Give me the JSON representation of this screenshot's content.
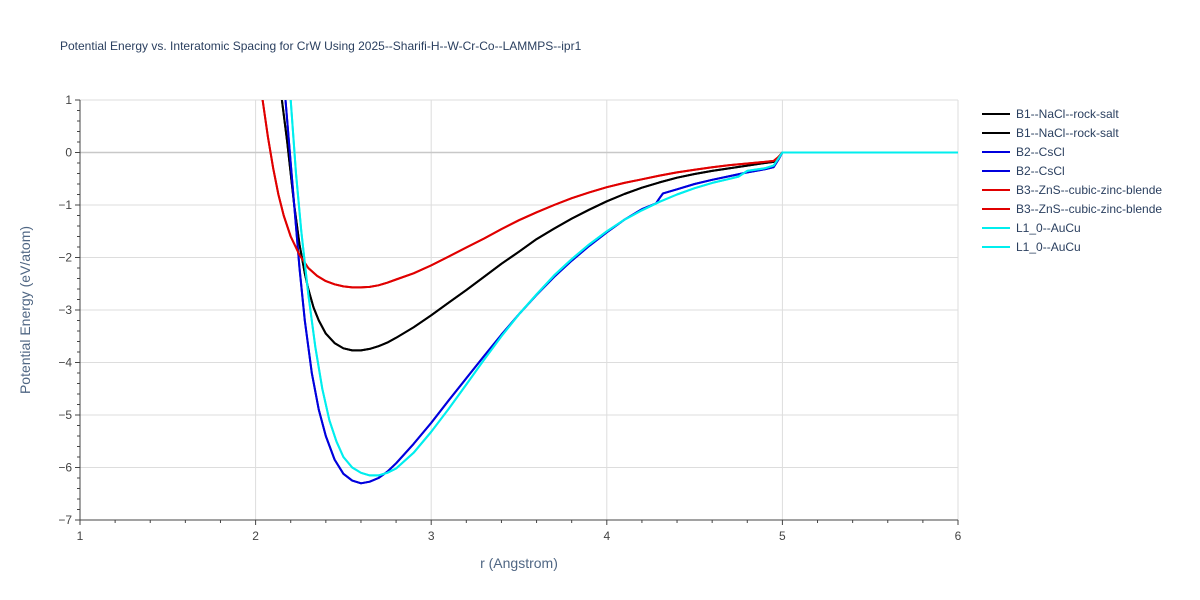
{
  "chart_data": {
    "type": "line",
    "title": "Potential Energy vs. Interatomic Spacing for CrW Using 2025--Sharifi-H--W-Cr-Co--LAMMPS--ipr1",
    "xlabel": "r (Angstrom)",
    "ylabel": "Potential Energy (eV/atom)",
    "xlim": [
      1,
      6
    ],
    "ylim": [
      -7,
      1
    ],
    "xticks": [
      1,
      2,
      3,
      4,
      5,
      6
    ],
    "yticks": [
      1,
      0,
      -1,
      -2,
      -3,
      -4,
      -5,
      -6,
      -7
    ],
    "xtick_labels": [
      "1",
      "2",
      "3",
      "4",
      "5",
      "6"
    ],
    "ytick_labels": [
      "1",
      "0",
      "−1",
      "−2",
      "−3",
      "−4",
      "−5",
      "−6",
      "−7"
    ],
    "grid": true,
    "legend_position": "right",
    "series": [
      {
        "name": "B1--NaCl--rock-salt",
        "color": "#000000",
        "x": [
          2.15,
          2.18,
          2.2,
          2.22,
          2.25,
          2.28,
          2.3,
          2.33,
          2.36,
          2.4,
          2.45,
          2.5,
          2.55,
          2.6,
          2.65,
          2.7,
          2.75,
          2.8,
          2.9,
          3.0,
          3.1,
          3.2,
          3.3,
          3.4,
          3.5,
          3.6,
          3.7,
          3.8,
          3.9,
          4.0,
          4.1,
          4.2,
          4.3,
          4.4,
          4.5,
          4.6,
          4.7,
          4.8,
          4.9,
          4.95,
          4.98,
          5.0,
          5.5,
          6.0
        ],
        "y": [
          1.0,
          0.2,
          -0.4,
          -1.0,
          -1.75,
          -2.3,
          -2.6,
          -2.95,
          -3.2,
          -3.45,
          -3.63,
          -3.73,
          -3.77,
          -3.77,
          -3.74,
          -3.69,
          -3.62,
          -3.53,
          -3.33,
          -3.1,
          -2.86,
          -2.62,
          -2.37,
          -2.12,
          -1.89,
          -1.65,
          -1.45,
          -1.26,
          -1.09,
          -0.93,
          -0.79,
          -0.67,
          -0.57,
          -0.48,
          -0.41,
          -0.35,
          -0.3,
          -0.25,
          -0.2,
          -0.18,
          -0.08,
          0.0,
          0.0,
          0.0
        ]
      },
      {
        "name": "B1--NaCl--rock-salt",
        "color": "#000000",
        "x": [
          2.15,
          2.18,
          2.2,
          2.22,
          2.25,
          2.28,
          2.3,
          2.33,
          2.36,
          2.4,
          2.45,
          2.5,
          2.55,
          2.6,
          2.65,
          2.7,
          2.75,
          2.8,
          2.9,
          3.0,
          3.1,
          3.2,
          3.3,
          3.4,
          3.5,
          3.6,
          3.7,
          3.8,
          3.9,
          4.0,
          4.1,
          4.2,
          4.3,
          4.4,
          4.5,
          4.6,
          4.7,
          4.8,
          4.9,
          4.95,
          4.98,
          5.0,
          5.5,
          6.0
        ],
        "y": [
          1.0,
          0.2,
          -0.4,
          -1.0,
          -1.75,
          -2.3,
          -2.6,
          -2.95,
          -3.2,
          -3.45,
          -3.63,
          -3.73,
          -3.77,
          -3.77,
          -3.74,
          -3.69,
          -3.62,
          -3.53,
          -3.33,
          -3.1,
          -2.86,
          -2.62,
          -2.37,
          -2.12,
          -1.89,
          -1.65,
          -1.45,
          -1.26,
          -1.09,
          -0.93,
          -0.79,
          -0.67,
          -0.57,
          -0.48,
          -0.41,
          -0.35,
          -0.3,
          -0.25,
          -0.2,
          -0.18,
          -0.08,
          0.0,
          0.0,
          0.0
        ]
      },
      {
        "name": "B2--CsCl",
        "color": "#0000dd",
        "x": [
          2.17,
          2.2,
          2.22,
          2.25,
          2.28,
          2.32,
          2.36,
          2.4,
          2.45,
          2.5,
          2.55,
          2.6,
          2.65,
          2.7,
          2.75,
          2.8,
          2.9,
          3.0,
          3.1,
          3.2,
          3.3,
          3.4,
          3.5,
          3.6,
          3.7,
          3.8,
          3.9,
          4.0,
          4.1,
          4.2,
          4.28,
          4.3,
          4.32,
          4.4,
          4.5,
          4.6,
          4.7,
          4.8,
          4.9,
          4.95,
          4.98,
          5.0,
          5.5,
          6.0
        ],
        "y": [
          1.0,
          -0.2,
          -1.0,
          -2.2,
          -3.2,
          -4.2,
          -4.9,
          -5.4,
          -5.85,
          -6.12,
          -6.25,
          -6.3,
          -6.27,
          -6.2,
          -6.08,
          -5.92,
          -5.55,
          -5.15,
          -4.72,
          -4.3,
          -3.88,
          -3.47,
          -3.08,
          -2.71,
          -2.37,
          -2.06,
          -1.78,
          -1.52,
          -1.28,
          -1.08,
          -0.97,
          -0.87,
          -0.78,
          -0.7,
          -0.6,
          -0.52,
          -0.45,
          -0.38,
          -0.32,
          -0.28,
          -0.12,
          0.0,
          0.0,
          0.0
        ]
      },
      {
        "name": "B2--CsCl",
        "color": "#0000dd",
        "x": [
          2.17,
          2.2,
          2.22,
          2.25,
          2.28,
          2.32,
          2.36,
          2.4,
          2.45,
          2.5,
          2.55,
          2.6,
          2.65,
          2.7,
          2.75,
          2.8,
          2.9,
          3.0,
          3.1,
          3.2,
          3.3,
          3.4,
          3.5,
          3.6,
          3.7,
          3.8,
          3.9,
          4.0,
          4.1,
          4.2,
          4.28,
          4.3,
          4.32,
          4.4,
          4.5,
          4.6,
          4.7,
          4.8,
          4.9,
          4.95,
          4.98,
          5.0,
          5.5,
          6.0
        ],
        "y": [
          1.0,
          -0.2,
          -1.0,
          -2.2,
          -3.2,
          -4.2,
          -4.9,
          -5.4,
          -5.85,
          -6.12,
          -6.25,
          -6.3,
          -6.27,
          -6.2,
          -6.08,
          -5.92,
          -5.55,
          -5.15,
          -4.72,
          -4.3,
          -3.88,
          -3.47,
          -3.08,
          -2.71,
          -2.37,
          -2.06,
          -1.78,
          -1.52,
          -1.28,
          -1.08,
          -0.97,
          -0.87,
          -0.78,
          -0.7,
          -0.6,
          -0.52,
          -0.45,
          -0.38,
          -0.32,
          -0.28,
          -0.12,
          0.0,
          0.0,
          0.0
        ]
      },
      {
        "name": "B3--ZnS--cubic-zinc-blende",
        "color": "#e00000",
        "x": [
          2.04,
          2.07,
          2.1,
          2.13,
          2.16,
          2.2,
          2.25,
          2.3,
          2.35,
          2.4,
          2.45,
          2.5,
          2.55,
          2.6,
          2.65,
          2.7,
          2.75,
          2.8,
          2.9,
          3.0,
          3.1,
          3.2,
          3.3,
          3.4,
          3.5,
          3.6,
          3.7,
          3.8,
          3.9,
          4.0,
          4.1,
          4.2,
          4.3,
          4.4,
          4.5,
          4.6,
          4.7,
          4.8,
          4.9,
          4.95,
          4.98,
          5.0,
          5.5,
          6.0
        ],
        "y": [
          1.0,
          0.3,
          -0.3,
          -0.8,
          -1.2,
          -1.6,
          -1.95,
          -2.2,
          -2.35,
          -2.45,
          -2.51,
          -2.55,
          -2.57,
          -2.57,
          -2.56,
          -2.53,
          -2.48,
          -2.42,
          -2.3,
          -2.15,
          -1.98,
          -1.81,
          -1.64,
          -1.46,
          -1.29,
          -1.14,
          -1.0,
          -0.87,
          -0.76,
          -0.66,
          -0.58,
          -0.51,
          -0.44,
          -0.38,
          -0.33,
          -0.28,
          -0.24,
          -0.21,
          -0.18,
          -0.16,
          -0.08,
          0.0,
          0.0,
          0.0
        ]
      },
      {
        "name": "B3--ZnS--cubic-zinc-blende",
        "color": "#e00000",
        "x": [
          2.04,
          2.07,
          2.1,
          2.13,
          2.16,
          2.2,
          2.25,
          2.3,
          2.35,
          2.4,
          2.45,
          2.5,
          2.55,
          2.6,
          2.65,
          2.7,
          2.75,
          2.8,
          2.9,
          3.0,
          3.1,
          3.2,
          3.3,
          3.4,
          3.5,
          3.6,
          3.7,
          3.8,
          3.9,
          4.0,
          4.1,
          4.2,
          4.3,
          4.4,
          4.5,
          4.6,
          4.7,
          4.8,
          4.9,
          4.95,
          4.98,
          5.0,
          5.5,
          6.0
        ],
        "y": [
          1.0,
          0.3,
          -0.3,
          -0.8,
          -1.2,
          -1.6,
          -1.95,
          -2.2,
          -2.35,
          -2.45,
          -2.51,
          -2.55,
          -2.57,
          -2.57,
          -2.56,
          -2.53,
          -2.48,
          -2.42,
          -2.3,
          -2.15,
          -1.98,
          -1.81,
          -1.64,
          -1.46,
          -1.29,
          -1.14,
          -1.0,
          -0.87,
          -0.76,
          -0.66,
          -0.58,
          -0.51,
          -0.44,
          -0.38,
          -0.33,
          -0.28,
          -0.24,
          -0.21,
          -0.18,
          -0.16,
          -0.08,
          0.0,
          0.0,
          0.0
        ]
      },
      {
        "name": "L1_0--AuCu",
        "color": "#00eeee",
        "x": [
          2.2,
          2.23,
          2.26,
          2.3,
          2.34,
          2.38,
          2.42,
          2.46,
          2.5,
          2.55,
          2.6,
          2.65,
          2.7,
          2.75,
          2.8,
          2.9,
          3.0,
          3.1,
          3.2,
          3.3,
          3.4,
          3.5,
          3.6,
          3.7,
          3.8,
          3.9,
          4.0,
          4.1,
          4.2,
          4.3,
          4.4,
          4.5,
          4.6,
          4.7,
          4.75,
          4.8,
          4.9,
          4.95,
          4.98,
          5.0,
          5.5,
          6.0
        ],
        "y": [
          1.0,
          -0.4,
          -1.5,
          -2.7,
          -3.7,
          -4.5,
          -5.1,
          -5.5,
          -5.8,
          -6.0,
          -6.1,
          -6.15,
          -6.15,
          -6.1,
          -6.02,
          -5.72,
          -5.32,
          -4.88,
          -4.42,
          -3.95,
          -3.5,
          -3.08,
          -2.7,
          -2.34,
          -2.03,
          -1.75,
          -1.5,
          -1.28,
          -1.1,
          -0.94,
          -0.8,
          -0.68,
          -0.58,
          -0.5,
          -0.46,
          -0.35,
          -0.3,
          -0.25,
          -0.1,
          0.0,
          0.0,
          0.0
        ]
      },
      {
        "name": "L1_0--AuCu",
        "color": "#00eeee",
        "x": [
          2.2,
          2.23,
          2.26,
          2.3,
          2.34,
          2.38,
          2.42,
          2.46,
          2.5,
          2.55,
          2.6,
          2.65,
          2.7,
          2.75,
          2.8,
          2.9,
          3.0,
          3.1,
          3.2,
          3.3,
          3.4,
          3.5,
          3.6,
          3.7,
          3.8,
          3.9,
          4.0,
          4.1,
          4.2,
          4.3,
          4.4,
          4.5,
          4.6,
          4.7,
          4.75,
          4.8,
          4.9,
          4.95,
          4.98,
          5.0,
          5.5,
          6.0
        ],
        "y": [
          1.0,
          -0.4,
          -1.5,
          -2.7,
          -3.7,
          -4.5,
          -5.1,
          -5.5,
          -5.8,
          -6.0,
          -6.1,
          -6.15,
          -6.15,
          -6.1,
          -6.02,
          -5.72,
          -5.32,
          -4.88,
          -4.42,
          -3.95,
          -3.5,
          -3.08,
          -2.7,
          -2.34,
          -2.03,
          -1.75,
          -1.5,
          -1.28,
          -1.1,
          -0.94,
          -0.8,
          -0.68,
          -0.58,
          -0.5,
          -0.46,
          -0.35,
          -0.3,
          -0.25,
          -0.1,
          0.0,
          0.0,
          0.0
        ]
      }
    ]
  }
}
